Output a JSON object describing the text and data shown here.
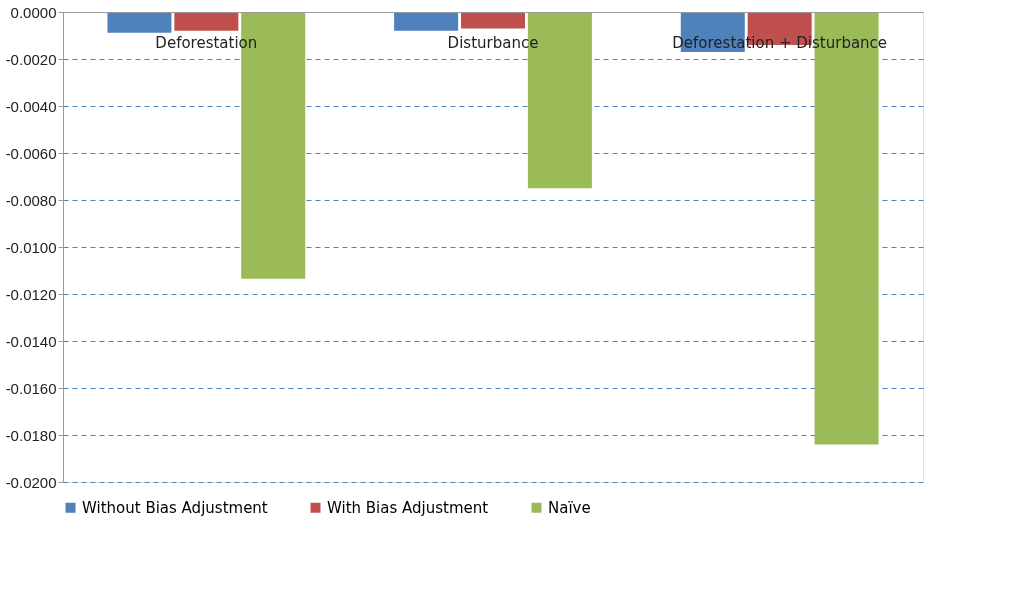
{
  "chart_data": {
    "type": "bar",
    "categories": [
      "Deforestation",
      "Disturbance",
      "Deforestation + Disturbance"
    ],
    "series": [
      {
        "name": "Without Bias Adjustment",
        "color": "#4f81bd",
        "values": [
          -0.00088,
          -0.0008,
          -0.0017
        ]
      },
      {
        "name": "With Bias Adjustment",
        "color": "#c0504d",
        "values": [
          -0.0008,
          -0.0007,
          -0.0014
        ]
      },
      {
        "name": "Naïve",
        "color": "#9bbb59",
        "values": [
          -0.01135,
          -0.0075,
          -0.0184
        ]
      }
    ],
    "ylim": [
      -0.02,
      0
    ],
    "yticks": [
      {
        "value": 0,
        "label": "0.0000"
      },
      {
        "value": -0.002,
        "label": "-0.0020"
      },
      {
        "value": -0.004,
        "label": "-0.0040"
      },
      {
        "value": -0.006,
        "label": "-0.0060"
      },
      {
        "value": -0.008,
        "label": "-0.0080"
      },
      {
        "value": -0.01,
        "label": "-0.0100"
      },
      {
        "value": -0.012,
        "label": "-0.0120"
      },
      {
        "value": -0.014,
        "label": "-0.0140"
      },
      {
        "value": -0.016,
        "label": "-0.0160"
      },
      {
        "value": -0.018,
        "label": "-0.0180"
      },
      {
        "value": -0.02,
        "label": "-0.0200"
      }
    ],
    "grid": "y",
    "legend": "bottom"
  }
}
